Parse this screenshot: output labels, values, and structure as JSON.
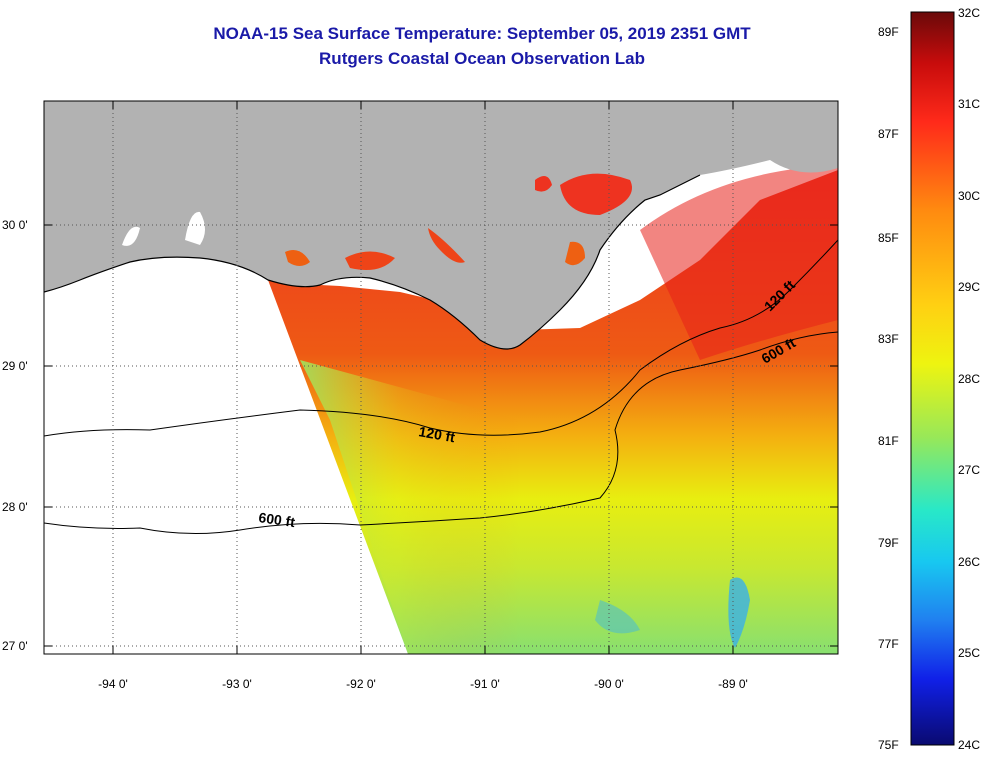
{
  "header": {
    "title": "NOAA-15 Sea Surface Temperature:  September 05, 2019 2351 GMT",
    "subtitle": "Rutgers Coastal Ocean Observation Lab"
  },
  "map": {
    "lat_labels": [
      "30 0'",
      "29 0'",
      "28 0'",
      "27 0'"
    ],
    "lon_labels": [
      "-94 0'",
      "-93 0'",
      "-92 0'",
      "-91 0'",
      "-90 0'",
      "-89 0'"
    ],
    "contour_labels": [
      "120 ft",
      "600 ft",
      "120 ft",
      "600 ft"
    ],
    "colors": {
      "land": "#b2b2b2",
      "background": "#ffffff"
    }
  },
  "colorbar": {
    "fahrenheit_labels": [
      "89F",
      "87F",
      "85F",
      "83F",
      "81F",
      "79F",
      "77F",
      "75F"
    ],
    "celsius_labels": [
      "32C",
      "31C",
      "30C",
      "29C",
      "28C",
      "27C",
      "26C",
      "25C",
      "24C"
    ]
  }
}
